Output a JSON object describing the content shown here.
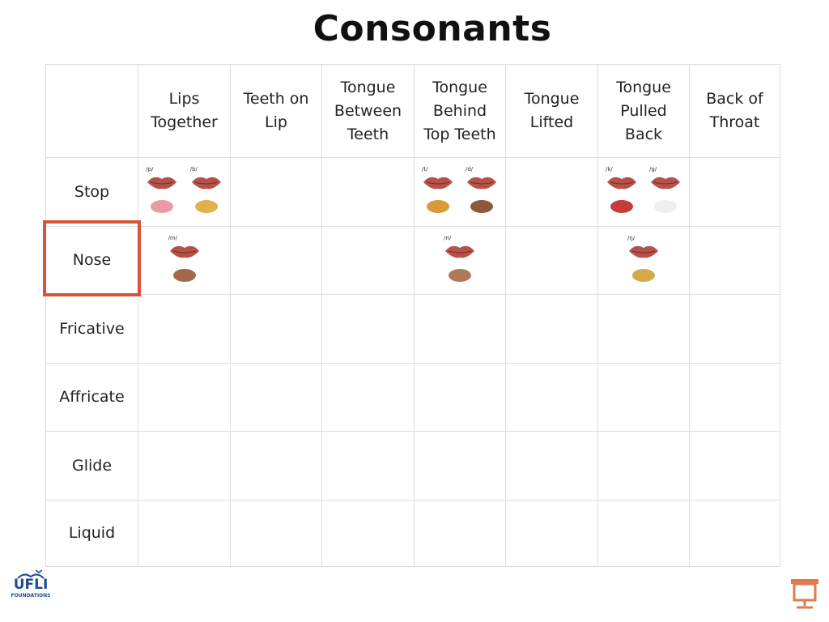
{
  "title": "Consonants",
  "table": {
    "columns": [
      "Lips Together",
      "Teeth on Lip",
      "Tongue Between Teeth",
      "Tongue Behind Top Teeth",
      "Tongue Lifted",
      "Tongue Pulled Back",
      "Back of Throat"
    ],
    "rows": [
      {
        "label": "Stop",
        "cells": [
          [
            "/p/",
            "/b/"
          ],
          null,
          null,
          [
            "/t/",
            "/d/"
          ],
          null,
          [
            "/k/",
            "/g/"
          ],
          null
        ]
      },
      {
        "label": "Nose",
        "cells": [
          [
            "/m/"
          ],
          null,
          null,
          [
            "/n/"
          ],
          null,
          [
            "/ŋ/"
          ],
          null
        ]
      },
      {
        "label": "Fricative",
        "cells": [
          null,
          null,
          null,
          null,
          null,
          null,
          null
        ]
      },
      {
        "label": "Affricate",
        "cells": [
          null,
          null,
          null,
          null,
          null,
          null,
          null
        ]
      },
      {
        "label": "Glide",
        "cells": [
          null,
          null,
          null,
          null,
          null,
          null,
          null
        ]
      },
      {
        "label": "Liquid",
        "cells": [
          null,
          null,
          null,
          null,
          null,
          null,
          null
        ]
      }
    ]
  },
  "logo": {
    "top": "UFLI",
    "bottom": "FOUNDATIONS"
  }
}
